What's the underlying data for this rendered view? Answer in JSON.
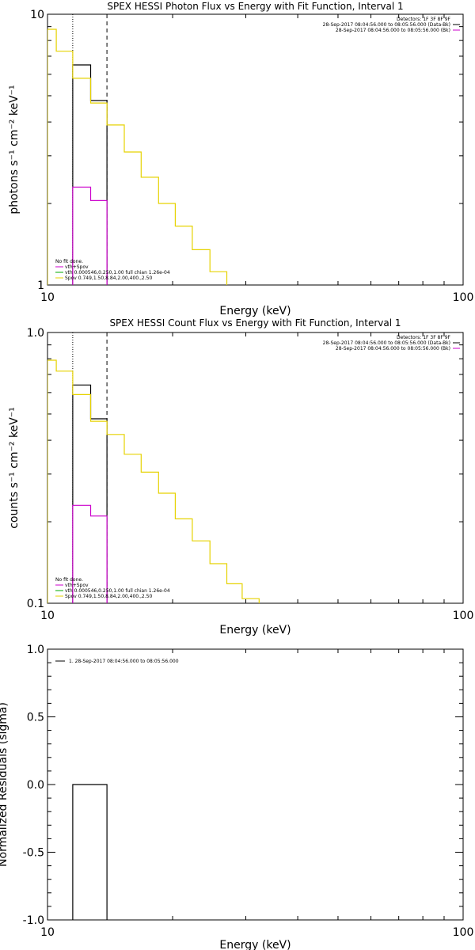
{
  "chart_data": [
    {
      "type": "line",
      "title": "SPEX HESSI Photon Flux vs Energy with Fit Function, Interval 1",
      "xlabel": "Energy (keV)",
      "ylabel": "photons s⁻¹ cm⁻² keV⁻¹",
      "xscale": "log",
      "yscale": "log",
      "xlim": [
        10,
        100
      ],
      "ylim": [
        1,
        10
      ],
      "x_ticks": [
        {
          "value": 10,
          "label": "10"
        },
        {
          "value": 100,
          "label": "100"
        }
      ],
      "y_ticks": [
        {
          "value": 1,
          "label": "1"
        },
        {
          "value": 10,
          "label": "10"
        }
      ],
      "vlines": [
        {
          "x": 11.5,
          "style": "dotted"
        },
        {
          "x": 13.9,
          "style": "dashed"
        }
      ],
      "series": [
        {
          "name": "Data",
          "color": "#000000",
          "bins": [
            [
              11.5,
              12.7,
              6.5
            ],
            [
              12.7,
              13.9,
              4.8
            ]
          ]
        },
        {
          "name": "Back",
          "color": "#cc00cc",
          "bins": [
            [
              11.5,
              12.7,
              2.3
            ],
            [
              12.7,
              13.9,
              2.05
            ]
          ]
        },
        {
          "name": "Spec",
          "color": "#e6d200",
          "bins": [
            [
              10,
              10.5,
              8.8
            ],
            [
              10.5,
              11.5,
              7.3
            ],
            [
              11.5,
              12.7,
              5.8
            ],
            [
              12.7,
              13.9,
              4.7
            ],
            [
              13.9,
              15.3,
              3.9
            ],
            [
              15.3,
              16.8,
              3.1
            ],
            [
              16.8,
              18.5,
              2.5
            ],
            [
              18.5,
              20.3,
              2.0
            ],
            [
              20.3,
              22.3,
              1.65
            ],
            [
              22.3,
              24.6,
              1.35
            ],
            [
              24.6,
              27.0,
              1.12
            ],
            [
              27.0,
              29.4,
              0.92
            ]
          ]
        }
      ],
      "legend_top": [
        "Detectors: 1F 3F 8F 9F",
        "28-Sep-2017 08:04:56.000 to 08:05:56.000 (Data-Bk)",
        "28-Sep-2017 08:04:56.000 to 08:05:56.000 (Bk)"
      ],
      "legend_top_colors": [
        "",
        "#000000",
        "#cc00cc"
      ],
      "legend_bottom": [
        {
          "text": "No fit done.",
          "color": ""
        },
        {
          "text": "vth+Spov",
          "color": "#cc00cc"
        },
        {
          "text": "vth 0.000546,0.250,1.00  full chian 1.26e-04",
          "color": "#00aa00"
        },
        {
          "text": "Spov 0.749,1.50,8.84,2.00,400.,2.50",
          "color": "#e6d200"
        }
      ]
    },
    {
      "type": "line",
      "title": "SPEX HESSI Count Flux vs Energy with Fit Function, Interval 1",
      "xlabel": "Energy (keV)",
      "ylabel": "counts s⁻¹ cm⁻² keV⁻¹",
      "xscale": "log",
      "yscale": "log",
      "xlim": [
        10,
        100
      ],
      "ylim": [
        0.1,
        1.0
      ],
      "x_ticks": [
        {
          "value": 10,
          "label": "10"
        },
        {
          "value": 100,
          "label": "100"
        }
      ],
      "y_ticks": [
        {
          "value": 0.1,
          "label": "0.1"
        },
        {
          "value": 1.0,
          "label": "1.0"
        }
      ],
      "vlines": [
        {
          "x": 11.5,
          "style": "dotted"
        },
        {
          "x": 13.9,
          "style": "dashed"
        }
      ],
      "series": [
        {
          "name": "Data",
          "color": "#000000",
          "bins": [
            [
              11.5,
              12.7,
              0.64
            ],
            [
              12.7,
              13.9,
              0.48
            ]
          ]
        },
        {
          "name": "Back",
          "color": "#cc00cc",
          "bins": [
            [
              11.5,
              12.7,
              0.23
            ],
            [
              12.7,
              13.9,
              0.21
            ]
          ]
        },
        {
          "name": "Spec",
          "color": "#e6d200",
          "bins": [
            [
              10,
              10.5,
              0.79
            ],
            [
              10.5,
              11.5,
              0.72
            ],
            [
              11.5,
              12.7,
              0.59
            ],
            [
              12.7,
              13.9,
              0.47
            ],
            [
              13.9,
              15.3,
              0.42
            ],
            [
              15.3,
              16.8,
              0.355
            ],
            [
              16.8,
              18.5,
              0.305
            ],
            [
              18.5,
              20.3,
              0.255
            ],
            [
              20.3,
              22.3,
              0.205
            ],
            [
              22.3,
              24.6,
              0.17
            ],
            [
              24.6,
              27.0,
              0.14
            ],
            [
              27.0,
              29.4,
              0.118
            ],
            [
              29.4,
              32.3,
              0.104
            ],
            [
              32.3,
              35.2,
              0.094
            ]
          ]
        }
      ],
      "legend_top": [
        "Detectors: 1F 3F 8F 9F",
        "28-Sep-2017 08:04:56.000 to 08:05:56.000 (Data-Bk)",
        "28-Sep-2017 08:04:56.000 to 08:05:56.000 (Bk)"
      ],
      "legend_top_colors": [
        "",
        "#000000",
        "#cc00cc"
      ],
      "legend_bottom": [
        {
          "text": "No fit done.",
          "color": ""
        },
        {
          "text": "vth+Spov",
          "color": "#cc00cc"
        },
        {
          "text": "vth 0.000546,0.250,1.00  full chian 1.26e-04",
          "color": "#00aa00"
        },
        {
          "text": "Spov 0.749,1.50,8.84,2.00,400.,2.50",
          "color": "#e6d200"
        }
      ]
    },
    {
      "type": "line",
      "title": "",
      "xlabel": "Energy (keV)",
      "ylabel": "Normalized Residuals (sigma)",
      "xscale": "log",
      "yscale": "linear",
      "xlim": [
        10,
        100
      ],
      "ylim": [
        -1.0,
        1.0
      ],
      "x_ticks": [
        {
          "value": 10,
          "label": "10"
        },
        {
          "value": 100,
          "label": "100"
        }
      ],
      "y_ticks": [
        {
          "value": -1.0,
          "label": "-1.0"
        },
        {
          "value": -0.5,
          "label": "-0.5"
        },
        {
          "value": 0.0,
          "label": "0.0"
        },
        {
          "value": 0.5,
          "label": "0.5"
        },
        {
          "value": 1.0,
          "label": "1.0"
        }
      ],
      "vlines": [],
      "series": [
        {
          "name": "Residuals",
          "color": "#000000",
          "bins": [
            [
              11.5,
              13.9,
              0.0
            ]
          ]
        }
      ],
      "legend_top": [],
      "legend_top_colors": [],
      "legend_bottom": [],
      "legend_left": [
        {
          "text": "1. 28-Sep-2017 08:04:56.000 to 08:05:56.000",
          "color": "#000000"
        }
      ]
    }
  ]
}
